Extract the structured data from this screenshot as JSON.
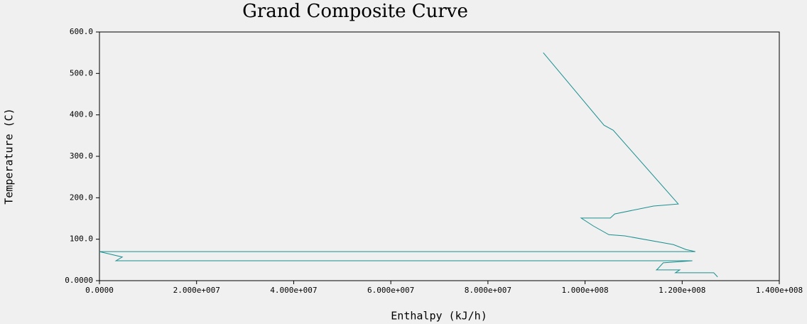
{
  "chart_data": {
    "type": "line",
    "title": "Grand Composite Curve",
    "x_label": "Enthalpy (kJ/h)",
    "y_label": "Temperature (C)",
    "series": [
      {
        "color": "#1a8f8f",
        "x": [
          91400000,
          103900000,
          105800000,
          119200000,
          114100000,
          106100000,
          105200000,
          99200000,
          101700000,
          104900000,
          108200000,
          118200000,
          120800000,
          122700000,
          0,
          4700000,
          3400000,
          122100000,
          116100000,
          115000000,
          114700000,
          119500000,
          118600000,
          126500000,
          127300000
        ],
        "values": [
          550,
          375,
          363,
          185,
          180,
          161,
          151,
          151,
          132,
          111,
          108,
          87,
          75,
          70,
          70,
          57,
          48,
          48,
          43,
          29,
          26,
          26,
          19,
          19,
          9
        ]
      }
    ],
    "xlim": [
      0,
      140000000
    ],
    "xticks": [
      {
        "value": 0,
        "label": "0.0000"
      },
      {
        "value": 20000000,
        "label": "2.000e+007"
      },
      {
        "value": 40000000,
        "label": "4.000e+007"
      },
      {
        "value": 60000000,
        "label": "6.000e+007"
      },
      {
        "value": 80000000,
        "label": "8.000e+007"
      },
      {
        "value": 100000000,
        "label": "1.000e+008"
      },
      {
        "value": 120000000,
        "label": "1.200e+008"
      },
      {
        "value": 140000000,
        "label": "1.400e+008"
      }
    ],
    "ylim": [
      0,
      600
    ],
    "yticks": [
      {
        "value": 0,
        "label": "0.0000"
      },
      {
        "value": 100,
        "label": "100.0"
      },
      {
        "value": 200,
        "label": "200.0"
      },
      {
        "value": 300,
        "label": "300.0"
      },
      {
        "value": 400,
        "label": "400.0"
      },
      {
        "value": 500,
        "label": "500.0"
      },
      {
        "value": 600,
        "label": "600.0"
      }
    ]
  }
}
